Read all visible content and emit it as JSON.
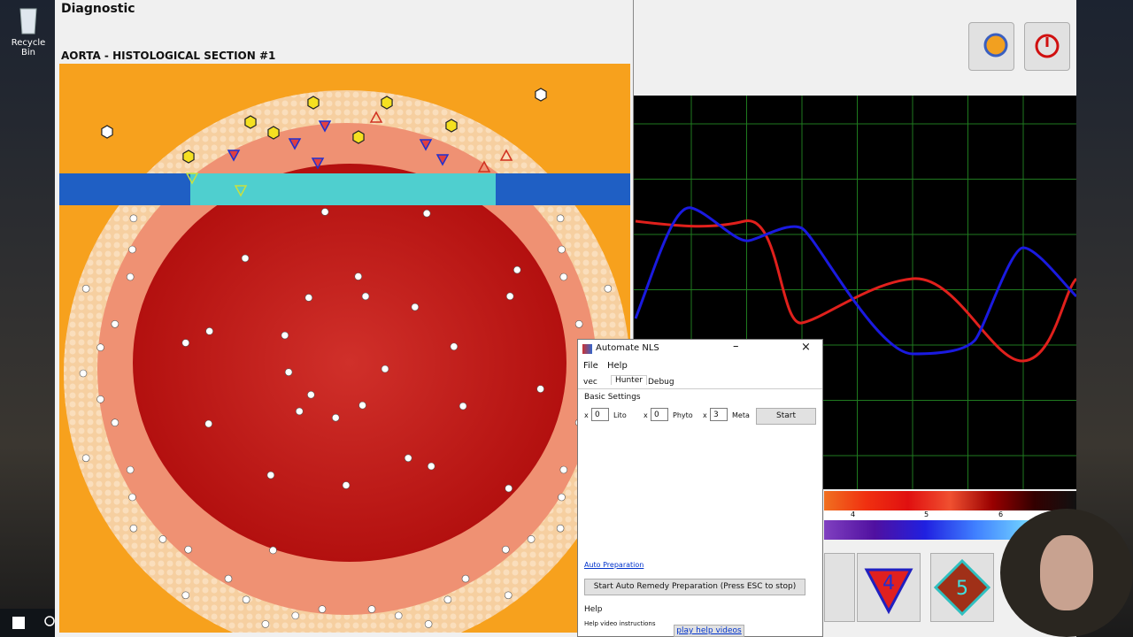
{
  "desktop": {
    "icons": [
      {
        "label": "Recycle Bin"
      }
    ]
  },
  "main_window": {
    "title": "Diagnostic",
    "section_title": "AORTA - HISTOLOGICAL SECTION #1"
  },
  "spectrum": {
    "labels": [
      "4",
      "5",
      "6"
    ]
  },
  "tool_buttons": [
    {
      "label": "4"
    },
    {
      "label": "5"
    }
  ],
  "dialog": {
    "title": "Automate NLS",
    "menu": [
      "File",
      "Help"
    ],
    "tabs": [
      "vec",
      "Hunter",
      "Debug"
    ],
    "basic_settings": {
      "heading": "Basic Settings",
      "fields": [
        {
          "prefix": "x",
          "value": "0",
          "label": "Lito"
        },
        {
          "prefix": "x",
          "value": "0",
          "label": "Phyto"
        },
        {
          "prefix": "x",
          "value": "3",
          "label": "Meta"
        }
      ],
      "start_button": "Start"
    },
    "auto_preparation": {
      "link": "Auto Preparation",
      "button": "Start Auto Remedy Preparation (Press ESC to stop)"
    },
    "help": {
      "heading": "Help",
      "text": "Help video instructions",
      "button": "play help videos"
    }
  }
}
